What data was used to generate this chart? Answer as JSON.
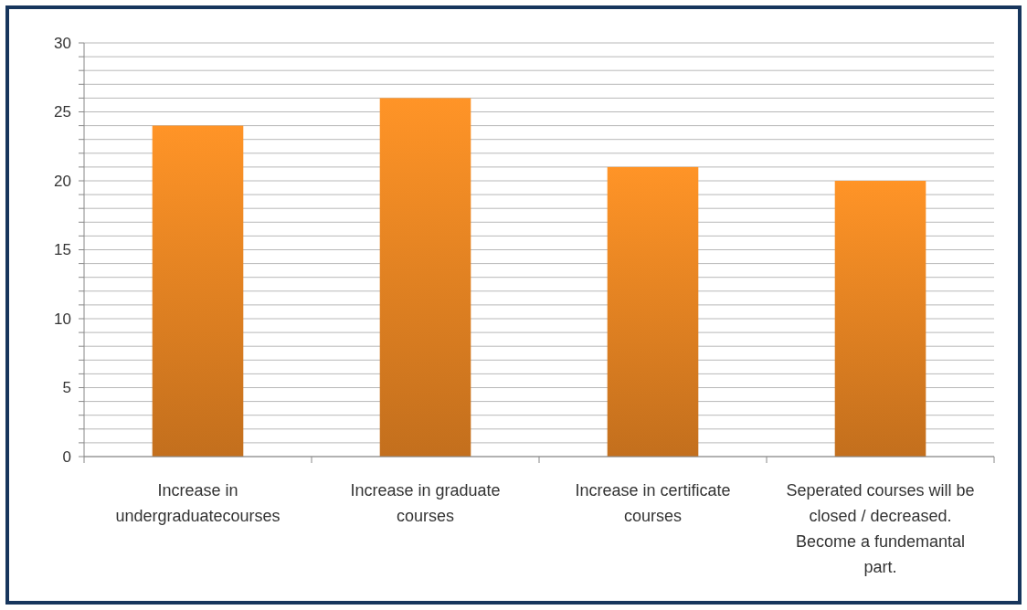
{
  "chart_data": {
    "type": "bar",
    "categories": [
      "Increase in undergraduatecourses",
      "Increase in graduate courses",
      "Increase in certificate courses",
      "Seperated courses will be closed / decreased. Become a fundemantal part."
    ],
    "values": [
      24,
      26,
      21,
      20
    ],
    "color": "#f28a24",
    "ylim": [
      0,
      30
    ],
    "yticks": [
      0,
      {
        "value": 1,
        "label": null
      },
      {
        "value": 2,
        "label": null
      },
      {
        "value": 3,
        "label": null
      },
      {
        "value": 4,
        "label": null
      },
      5,
      {
        "value": 6,
        "label": null
      },
      {
        "value": 7,
        "label": null
      },
      {
        "value": 8,
        "label": null
      },
      {
        "value": 9,
        "label": null
      },
      10,
      {
        "value": 11,
        "label": null
      },
      {
        "value": 12,
        "label": null
      },
      {
        "value": 13,
        "label": null
      },
      {
        "value": 14,
        "label": null
      },
      15,
      {
        "value": 16,
        "label": null
      },
      {
        "value": 17,
        "label": null
      },
      {
        "value": 18,
        "label": null
      },
      {
        "value": 19,
        "label": null
      },
      20,
      {
        "value": 21,
        "label": null
      },
      {
        "value": 22,
        "label": null
      },
      {
        "value": 23,
        "label": null
      },
      {
        "value": 24,
        "label": null
      },
      25,
      {
        "value": 26,
        "label": null
      },
      {
        "value": 27,
        "label": null
      },
      {
        "value": 28,
        "label": null
      },
      {
        "value": 29,
        "label": null
      },
      30
    ],
    "grid": "y"
  }
}
